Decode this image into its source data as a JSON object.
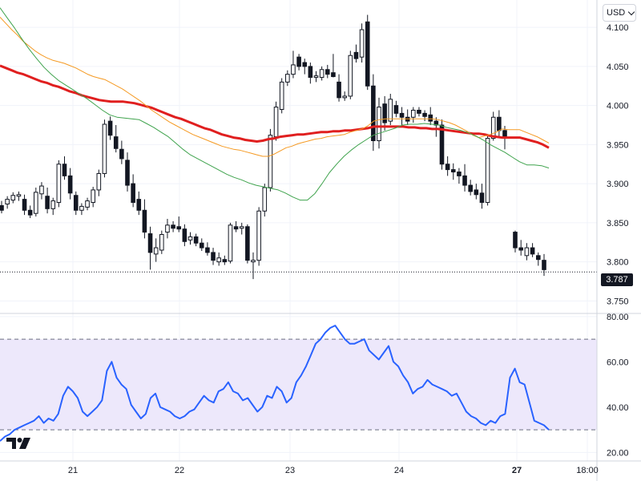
{
  "currency": {
    "label": "USD"
  },
  "last_price": {
    "label": "3.787"
  },
  "chart_data": [
    {
      "type": "candlestick",
      "title": "",
      "ylim": [
        3.735,
        4.135
      ],
      "y_ticks": [
        "4.100",
        "4.050",
        "4.000",
        "3.950",
        "3.900",
        "3.850",
        "3.800",
        "3.750"
      ],
      "y_tick_values": [
        4.1,
        4.05,
        4.0,
        3.95,
        3.9,
        3.85,
        3.8,
        3.75
      ],
      "x_ticks": [
        "21",
        "22",
        "23",
        "24",
        "27",
        "18:00"
      ],
      "last_price": 3.787,
      "candles": [
        [
          3.872,
          3.878,
          3.862,
          3.866
        ],
        [
          3.874,
          3.884,
          3.868,
          3.88
        ],
        [
          3.879,
          3.889,
          3.875,
          3.885
        ],
        [
          3.884,
          3.89,
          3.878,
          3.886
        ],
        [
          3.88,
          3.886,
          3.86,
          3.866
        ],
        [
          3.866,
          3.872,
          3.856,
          3.86
        ],
        [
          3.862,
          3.895,
          3.858,
          3.889
        ],
        [
          3.887,
          3.902,
          3.88,
          3.897
        ],
        [
          3.884,
          3.895,
          3.862,
          3.868
        ],
        [
          3.868,
          3.882,
          3.86,
          3.878
        ],
        [
          3.876,
          3.93,
          3.87,
          3.925
        ],
        [
          3.925,
          3.935,
          3.905,
          3.91
        ],
        [
          3.91,
          3.92,
          3.88,
          3.888
        ],
        [
          3.885,
          3.89,
          3.86,
          3.866
        ],
        [
          3.866,
          3.875,
          3.86,
          3.871
        ],
        [
          3.87,
          3.882,
          3.866,
          3.878
        ],
        [
          3.876,
          3.896,
          3.87,
          3.892
        ],
        [
          3.892,
          3.918,
          3.884,
          3.913
        ],
        [
          3.913,
          3.982,
          3.908,
          3.976
        ],
        [
          3.98,
          3.986,
          3.956,
          3.962
        ],
        [
          3.96,
          3.975,
          3.94,
          3.945
        ],
        [
          3.944,
          3.955,
          3.925,
          3.932
        ],
        [
          3.93,
          3.94,
          3.89,
          3.898
        ],
        [
          3.9,
          3.912,
          3.87,
          3.876
        ],
        [
          3.88,
          3.89,
          3.86,
          3.866
        ],
        [
          3.866,
          3.88,
          3.83,
          3.838
        ],
        [
          3.836,
          3.845,
          3.79,
          3.812
        ],
        [
          3.81,
          3.83,
          3.8,
          3.818
        ],
        [
          3.815,
          3.84,
          3.81,
          3.835
        ],
        [
          3.838,
          3.855,
          3.83,
          3.847
        ],
        [
          3.847,
          3.852,
          3.838,
          3.843
        ],
        [
          3.845,
          3.858,
          3.838,
          3.842
        ],
        [
          3.842,
          3.848,
          3.82,
          3.826
        ],
        [
          3.828,
          3.838,
          3.822,
          3.832
        ],
        [
          3.832,
          3.836,
          3.82,
          3.824
        ],
        [
          3.824,
          3.83,
          3.814,
          3.818
        ],
        [
          3.818,
          3.825,
          3.808,
          3.812
        ],
        [
          3.812,
          3.818,
          3.796,
          3.802
        ],
        [
          3.8,
          3.812,
          3.795,
          3.805
        ],
        [
          3.803,
          3.808,
          3.796,
          3.8
        ],
        [
          3.801,
          3.85,
          3.798,
          3.847
        ],
        [
          3.845,
          3.852,
          3.838,
          3.842
        ],
        [
          3.843,
          3.85,
          3.835,
          3.845
        ],
        [
          3.845,
          3.848,
          3.798,
          3.802
        ],
        [
          3.8,
          3.812,
          3.778,
          3.802
        ],
        [
          3.802,
          3.87,
          3.795,
          3.865
        ],
        [
          3.865,
          3.9,
          3.858,
          3.895
        ],
        [
          3.895,
          3.97,
          3.89,
          3.962
        ],
        [
          3.96,
          4.005,
          3.955,
          3.998
        ],
        [
          3.995,
          4.035,
          3.99,
          4.03
        ],
        [
          4.03,
          4.045,
          4.025,
          4.04
        ],
        [
          4.04,
          4.07,
          4.035,
          4.052
        ],
        [
          4.062,
          4.066,
          4.045,
          4.05
        ],
        [
          4.055,
          4.06,
          4.04,
          4.05
        ],
        [
          4.05,
          4.055,
          4.028,
          4.036
        ],
        [
          4.036,
          4.044,
          4.03,
          4.038
        ],
        [
          4.036,
          4.05,
          4.032,
          4.046
        ],
        [
          4.046,
          4.052,
          4.035,
          4.04
        ],
        [
          4.042,
          4.066,
          4.036,
          4.037
        ],
        [
          4.03,
          4.04,
          4.005,
          4.01
        ],
        [
          4.01,
          4.018,
          4.006,
          4.012
        ],
        [
          4.012,
          4.07,
          4.008,
          4.064
        ],
        [
          4.068,
          4.078,
          4.055,
          4.06
        ],
        [
          4.062,
          4.105,
          4.055,
          4.097
        ],
        [
          4.107,
          4.116,
          4.02,
          4.025
        ],
        [
          4.025,
          4.04,
          3.942,
          3.955
        ],
        [
          3.955,
          4.01,
          3.945,
          3.998
        ],
        [
          4.002,
          4.012,
          3.968,
          3.978
        ],
        [
          3.98,
          4.015,
          3.975,
          4.008
        ],
        [
          4.0,
          4.006,
          3.985,
          3.99
        ],
        [
          3.99,
          3.998,
          3.975,
          3.985
        ],
        [
          3.985,
          3.995,
          3.975,
          3.98
        ],
        [
          3.985,
          3.998,
          3.978,
          3.994
        ],
        [
          3.994,
          3.998,
          3.986,
          3.99
        ],
        [
          3.99,
          3.994,
          3.98,
          3.986
        ],
        [
          3.988,
          3.998,
          3.975,
          3.98
        ],
        [
          3.98,
          3.985,
          3.96,
          3.975
        ],
        [
          3.975,
          3.982,
          3.918,
          3.925
        ],
        [
          3.925,
          3.935,
          3.91,
          3.918
        ],
        [
          3.918,
          3.926,
          3.905,
          3.915
        ],
        [
          3.915,
          3.92,
          3.9,
          3.91
        ],
        [
          3.91,
          3.925,
          3.89,
          3.898
        ],
        [
          3.898,
          3.905,
          3.885,
          3.89
        ],
        [
          3.892,
          3.9,
          3.88,
          3.886
        ],
        [
          3.888,
          3.9,
          3.868,
          3.876
        ],
        [
          3.876,
          3.962,
          3.872,
          3.958
        ],
        [
          3.958,
          3.992,
          3.955,
          3.985
        ],
        [
          3.985,
          3.994,
          3.96,
          3.968
        ],
        [
          3.968,
          3.974,
          3.944,
          3.96
        ],
        [
          3.838,
          3.84,
          3.812,
          3.818
        ],
        [
          3.818,
          3.828,
          3.808,
          3.815
        ],
        [
          3.808,
          3.824,
          3.802,
          3.818
        ],
        [
          3.818,
          3.824,
          3.806,
          3.81
        ],
        [
          3.808,
          3.812,
          3.795,
          3.803
        ],
        [
          3.802,
          3.81,
          3.782,
          3.79
        ]
      ],
      "series": [
        {
          "color": "#e01f1f",
          "values": [
            4.051,
            4.048,
            4.045,
            4.042,
            4.04,
            4.037,
            4.034,
            4.031,
            4.029,
            4.026,
            4.024,
            4.021,
            4.018,
            4.016,
            4.013,
            4.011,
            4.009,
            4.007,
            4.006,
            4.005,
            4.005,
            4.005,
            4.004,
            4.003,
            4.001,
            3.999,
            3.997,
            3.994,
            3.991,
            3.988,
            3.985,
            3.983,
            3.98,
            3.977,
            3.974,
            3.971,
            3.969,
            3.966,
            3.963,
            3.961,
            3.959,
            3.958,
            3.956,
            3.955,
            3.954,
            3.955,
            3.957,
            3.958,
            3.96,
            3.961,
            3.962,
            3.963,
            3.963,
            3.964,
            3.965,
            3.966,
            3.966,
            3.967,
            3.967,
            3.968,
            3.968,
            3.969,
            3.97,
            3.971,
            3.973,
            3.973,
            3.973,
            3.973,
            3.973,
            3.973,
            3.972,
            3.972,
            3.971,
            3.971,
            3.97,
            3.97,
            3.969,
            3.968,
            3.967,
            3.966,
            3.965,
            3.964,
            3.964,
            3.963,
            3.961,
            3.96,
            3.959,
            3.959,
            3.959,
            3.959,
            3.957,
            3.955,
            3.953,
            3.95,
            3.946
          ]
        },
        {
          "color": "#f59a23",
          "values": [
            4.113,
            4.105,
            4.097,
            4.09,
            4.082,
            4.076,
            4.07,
            4.065,
            4.061,
            4.058,
            4.056,
            4.054,
            4.051,
            4.048,
            4.044,
            4.04,
            4.037,
            4.035,
            4.033,
            4.029,
            4.025,
            4.021,
            4.016,
            4.011,
            4.006,
            4.0,
            3.994,
            3.989,
            3.984,
            3.979,
            3.975,
            3.971,
            3.967,
            3.963,
            3.96,
            3.957,
            3.954,
            3.951,
            3.948,
            3.946,
            3.944,
            3.943,
            3.941,
            3.939,
            3.937,
            3.935,
            3.935,
            3.938,
            3.942,
            3.946,
            3.948,
            3.951,
            3.953,
            3.955,
            3.957,
            3.958,
            3.96,
            3.961,
            3.962,
            3.963,
            3.966,
            3.968,
            3.97,
            3.974,
            3.98,
            3.982,
            3.983,
            3.983,
            3.983,
            3.983,
            3.983,
            3.983,
            3.983,
            3.983,
            3.983,
            3.982,
            3.98,
            3.978,
            3.975,
            3.971,
            3.967,
            3.962,
            3.959,
            3.961,
            3.963,
            3.966,
            3.97,
            3.969,
            3.969,
            3.969,
            3.966,
            3.963,
            3.96,
            3.956,
            3.952
          ]
        },
        {
          "color": "#3fa34d",
          "values": [
            4.125,
            4.112,
            4.099,
            4.085,
            4.072,
            4.06,
            4.049,
            4.04,
            4.032,
            4.026,
            4.02,
            4.014,
            4.008,
            4.001,
            3.994,
            3.988,
            3.985,
            3.984,
            3.983,
            3.982,
            3.977,
            3.972,
            3.966,
            3.96,
            3.952,
            3.944,
            3.937,
            3.932,
            3.927,
            3.922,
            3.917,
            3.912,
            3.908,
            3.905,
            3.901,
            3.898,
            3.896,
            3.894,
            3.892,
            3.888,
            3.883,
            3.879,
            3.879,
            3.887,
            3.9,
            3.914,
            3.925,
            3.935,
            3.943,
            3.95,
            3.956,
            3.962,
            3.965,
            3.968,
            3.971,
            3.975,
            3.976,
            3.976,
            3.977,
            3.976,
            3.975,
            3.972,
            3.97,
            3.968,
            3.965,
            3.961,
            3.956,
            3.95,
            3.945,
            3.94,
            3.934,
            3.928,
            3.924,
            3.924,
            3.923,
            3.92
          ]
        }
      ]
    },
    {
      "type": "line",
      "title": "",
      "ylim": [
        18,
        81
      ],
      "y_ticks": [
        "80.00",
        "60.00",
        "40.00",
        "20.00"
      ],
      "y_tick_values": [
        80,
        60,
        40,
        20
      ],
      "band": [
        30,
        70
      ],
      "series": [
        {
          "color": "#2962ff",
          "values": [
            25,
            27,
            28,
            30,
            31,
            32,
            33,
            34,
            36,
            33,
            35,
            34,
            37,
            45,
            49,
            47,
            44,
            38,
            36,
            38,
            40,
            43,
            56,
            60,
            53,
            50,
            48,
            41,
            38,
            35,
            37,
            44,
            46,
            40,
            39,
            38,
            36,
            35,
            36,
            38,
            39,
            42,
            45,
            43,
            42,
            47,
            48,
            51,
            47,
            46,
            43,
            44,
            41,
            38,
            40,
            45,
            44,
            49,
            47,
            42,
            44,
            51,
            54,
            58,
            63,
            68,
            70,
            73,
            75,
            76,
            73,
            70,
            68,
            68,
            69,
            70,
            65,
            63,
            61,
            64,
            67,
            60,
            58,
            54,
            51,
            46,
            48,
            49,
            52,
            50,
            49,
            48,
            47,
            45,
            46,
            42,
            38,
            36,
            35,
            33,
            32,
            34,
            33,
            36,
            37,
            53,
            57,
            51,
            50,
            42,
            34,
            33,
            32,
            30
          ]
        }
      ]
    }
  ]
}
